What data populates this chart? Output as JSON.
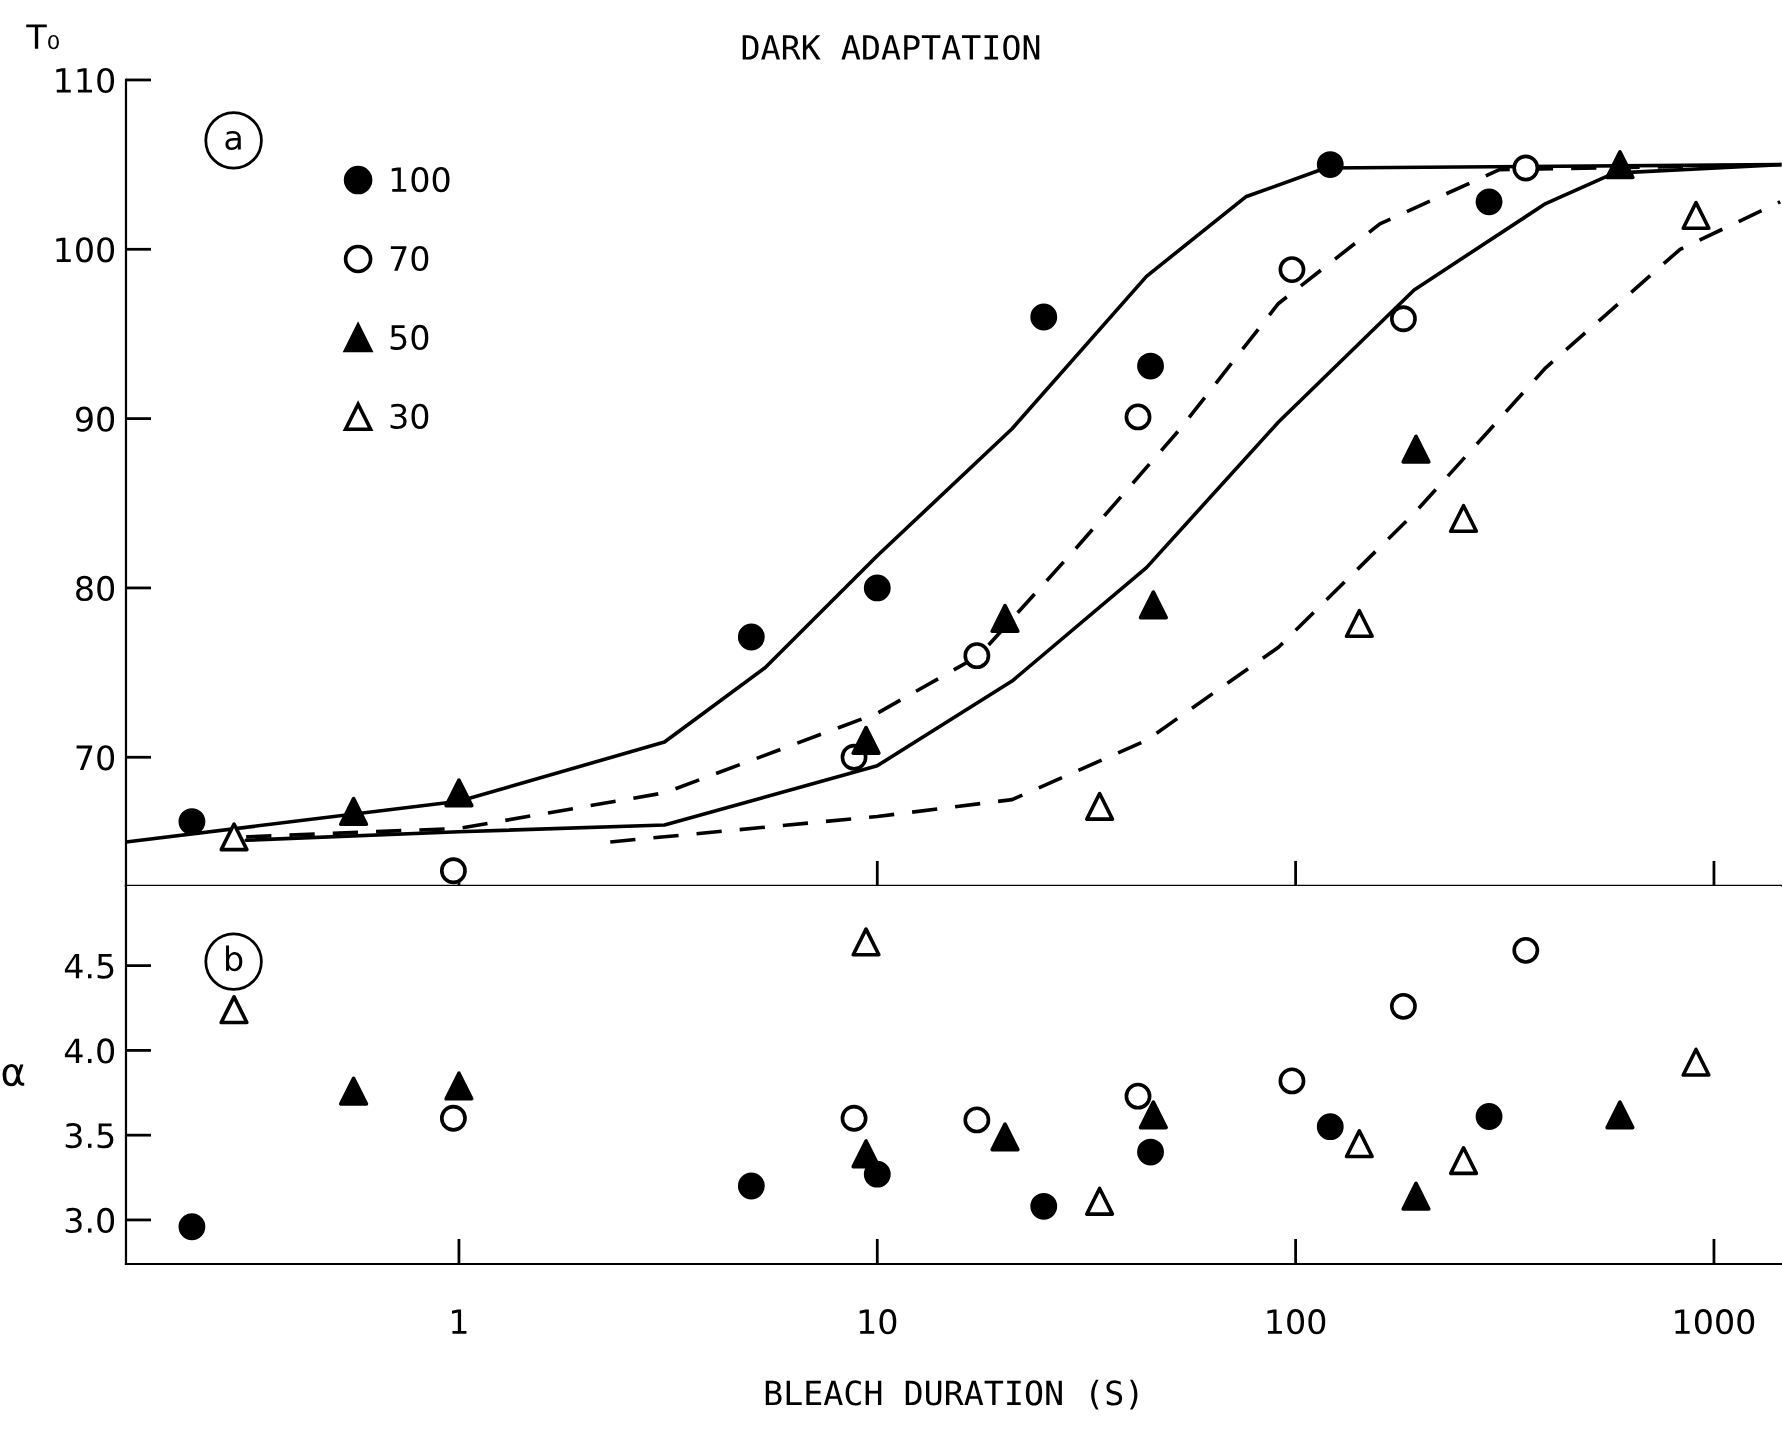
{
  "chart_data": [
    {
      "type": "scatter",
      "title": "DARK ADAPTATION",
      "ylabel": "T₀",
      "annotations": [
        "a"
      ],
      "xlim": [
        0.16,
        1450
      ],
      "ylim": [
        62.4,
        110
      ],
      "log": "x",
      "xticks": [
        1,
        10,
        100,
        1000
      ],
      "yticks": [
        70,
        80,
        90,
        100,
        110
      ],
      "tick_labels": "y",
      "legend": "top left",
      "grid": false,
      "series": [
        {
          "name": "100",
          "color": "#000000",
          "marker": "circle",
          "x": [
            0.23,
            5,
            10,
            25,
            45,
            121,
            290
          ],
          "values": [
            66.2,
            77.1,
            80,
            96,
            93.1,
            105,
            102.8
          ]
        },
        {
          "name": "70",
          "color": "#ffffff",
          "marker": "circle",
          "x": [
            0.97,
            8.8,
            17.3,
            42,
            98,
            181,
            355
          ],
          "values": [
            63.3,
            70,
            76,
            90.1,
            98.8,
            95.9,
            104.8
          ]
        },
        {
          "name": "50",
          "color": "#000000",
          "marker": "triangle",
          "x": [
            0.56,
            1,
            9.4,
            20.2,
            45.7,
            194,
            596
          ],
          "values": [
            66.8,
            67.9,
            71,
            78.2,
            79,
            88.2,
            105
          ]
        },
        {
          "name": "30",
          "color": "#ffffff",
          "marker": "triangle",
          "x": [
            0.29,
            34,
            142,
            252,
            906
          ],
          "values": [
            65.3,
            67.1,
            77.9,
            84.1,
            102
          ]
        },
        {
          "type": "line",
          "color": "#000000",
          "marker": "none",
          "line_style": "solid",
          "x": [
            0.16,
            1,
            3.1,
            5.4,
            10,
            21,
            44,
            76,
            118,
            1450
          ],
          "values": [
            65.0,
            67.4,
            70.9,
            75.3,
            81.9,
            89.4,
            98.4,
            103.1,
            104.8,
            105
          ]
        },
        {
          "type": "line",
          "color": "#000000",
          "marker": "none",
          "line_style": "dashed",
          "x": [
            0.31,
            1,
            3.1,
            10,
            17.5,
            30,
            53,
            91,
            159,
            307,
            1450
          ],
          "values": [
            65.3,
            65.8,
            67.9,
            72.6,
            76,
            82.4,
            89.4,
            96.8,
            101.5,
            104.7,
            105
          ]
        },
        {
          "type": "line",
          "color": "#000000",
          "marker": "none",
          "line_style": "solid",
          "x": [
            0.31,
            1,
            3.1,
            10,
            21,
            44,
            91,
            192,
            396,
            577,
            1450
          ],
          "values": [
            65.1,
            65.6,
            66,
            69.5,
            74.5,
            81.2,
            89.8,
            97.6,
            102.7,
            104.5,
            105
          ]
        },
        {
          "type": "line",
          "color": "#000000",
          "marker": "none",
          "line_style": "dashed",
          "x": [
            2.3,
            10,
            21,
            44,
            91,
            192,
            396,
            830,
            1440
          ],
          "values": [
            65.0,
            66.5,
            67.5,
            71,
            76.5,
            84.4,
            93,
            100,
            102.8
          ]
        }
      ]
    },
    {
      "type": "scatter",
      "xlabel": "BLEACH DURATION (S)",
      "ylabel": "α",
      "annotations": [
        "b"
      ],
      "xlim": [
        0.16,
        1450
      ],
      "ylim": [
        2.74,
        4.97
      ],
      "log": "x",
      "xticks": [
        1,
        10,
        100,
        1000
      ],
      "yticks": [
        {
          "value": 3.0,
          "label": "3.0"
        },
        3.5,
        {
          "value": 4.0,
          "label": "4.0"
        },
        4.5
      ],
      "grid": false,
      "series": [
        {
          "color": "#000000",
          "marker": "circle",
          "x": [
            0.23,
            5,
            10,
            25,
            45,
            121,
            290
          ],
          "values": [
            2.96,
            3.2,
            3.27,
            3.08,
            3.4,
            3.55,
            3.61
          ]
        },
        {
          "color": "#ffffff",
          "marker": "circle",
          "x": [
            0.97,
            8.8,
            17.3,
            42,
            98,
            181,
            355
          ],
          "values": [
            3.6,
            3.6,
            3.59,
            3.73,
            3.82,
            4.26,
            4.59
          ]
        },
        {
          "color": "#000000",
          "marker": "triangle",
          "x": [
            0.56,
            1,
            9.4,
            20.2,
            45.7,
            194,
            596
          ],
          "values": [
            3.76,
            3.79,
            3.39,
            3.49,
            3.62,
            3.14,
            3.62
          ]
        },
        {
          "color": "#ffffff",
          "marker": "triangle",
          "x": [
            0.29,
            9.4,
            34,
            142,
            252,
            906
          ],
          "values": [
            4.24,
            4.64,
            3.11,
            3.45,
            3.35,
            3.93
          ]
        }
      ]
    }
  ]
}
